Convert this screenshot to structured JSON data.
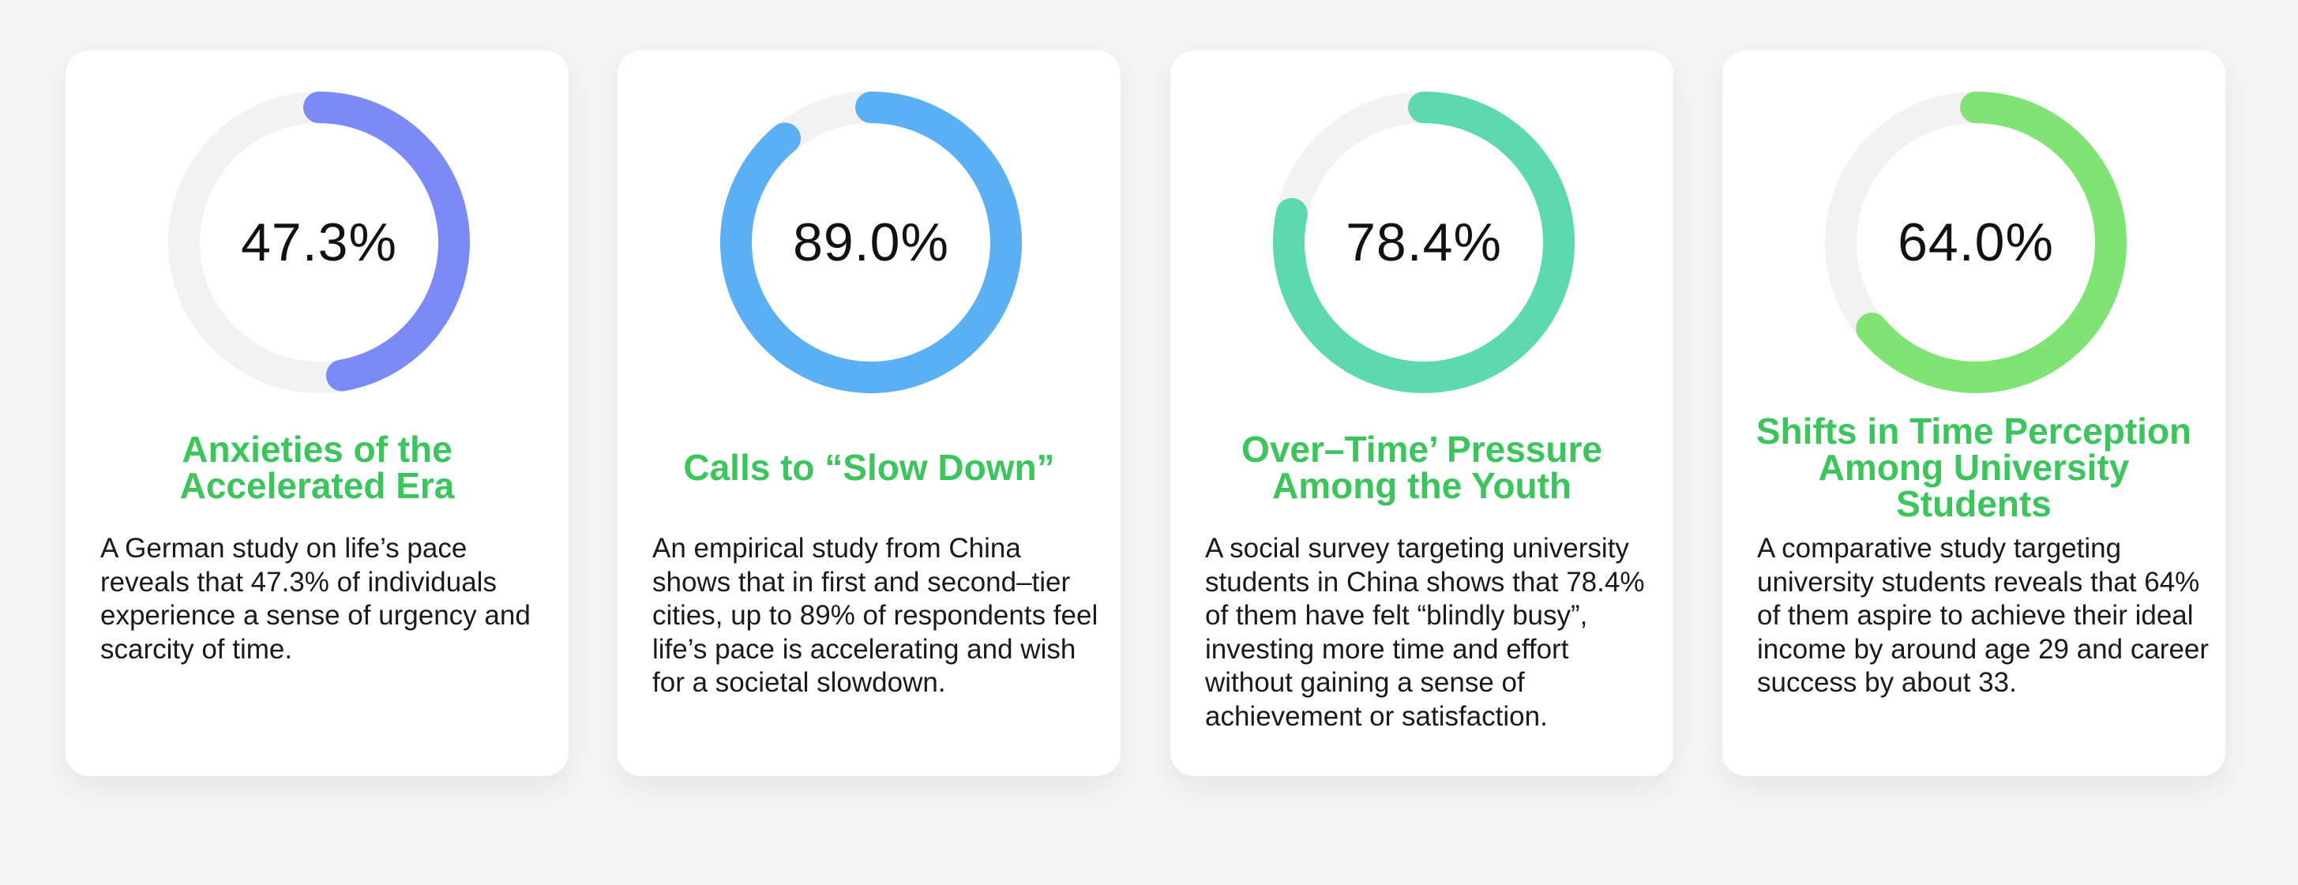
{
  "chart_data": [
    {
      "type": "pie",
      "value": 47.3,
      "label": "47.3%",
      "color": "#7b8af7",
      "title": "Anxieties of the Accelerated Era",
      "description": "A German study on life’s pace reveals that 47.3% of individuals experience a sense of urgency and scarcity of time."
    },
    {
      "type": "pie",
      "value": 89.0,
      "label": "89.0%",
      "color": "#5ab0f3",
      "title": "Calls to “Slow Down”",
      "description": "An empirical study from China shows that in first and second–tier cities, up to 89% of respondents feel life’s pace is accelerating and wish for a societal slowdown."
    },
    {
      "type": "pie",
      "value": 78.4,
      "label": "78.4%",
      "color": "#5dd9ae",
      "title": "Over–Time’ Pressure Among the Youth",
      "description": "A social survey targeting university students in China shows that 78.4% of them have felt “blindly busy”, investing more time and effort without gaining a sense of achievement or satisfaction."
    },
    {
      "type": "pie",
      "value": 64.0,
      "label": "64.0%",
      "color": "#7fe474",
      "title": "Shifts in Time Perception Among University Students",
      "description": "A comparative study targeting university students reveals that 64% of them aspire to achieve their ideal income by around age 29 and career success by about 33."
    }
  ],
  "colors": {
    "track": "#f2f2f2",
    "title": "#3cc55d"
  }
}
